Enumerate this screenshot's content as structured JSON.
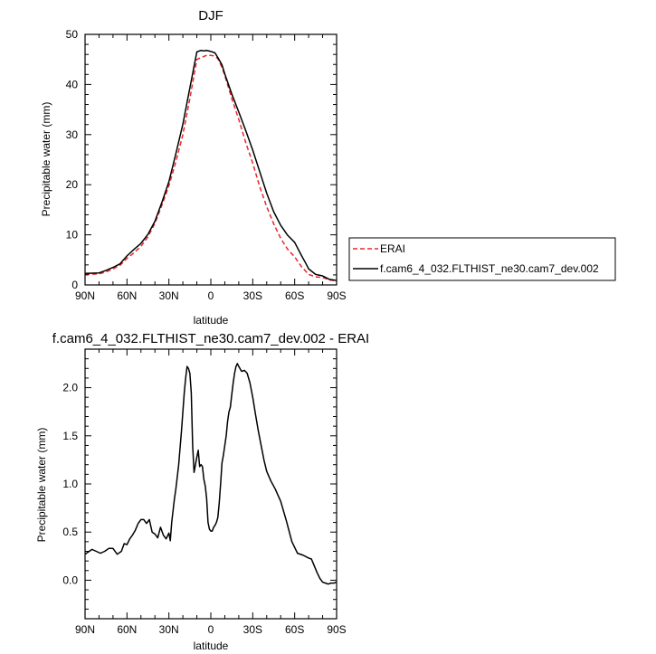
{
  "chart_data": [
    {
      "type": "line",
      "title": "DJF",
      "xlabel": "latitude",
      "ylabel": "Precipitable water (mm)",
      "xlim": [
        90,
        -90
      ],
      "ylim": [
        0,
        50
      ],
      "x_ticks": [
        90,
        60,
        30,
        0,
        -30,
        -60,
        -90
      ],
      "x_tick_labels": [
        "90N",
        "60N",
        "30N",
        "0",
        "30S",
        "60S",
        "90S"
      ],
      "y_ticks": [
        0,
        10,
        20,
        30,
        40,
        50
      ],
      "y_tick_labels": [
        "0",
        "10",
        "20",
        "30",
        "40",
        "50"
      ],
      "legend_placement": "right",
      "series": [
        {
          "name": "ERAI",
          "color": "#e8262a",
          "dash": "dashed",
          "x": [
            90,
            80,
            75,
            70,
            65,
            60,
            55,
            50,
            45,
            40,
            35,
            30,
            25,
            20,
            15,
            10,
            5,
            2,
            0,
            -2,
            -5,
            -8,
            -10,
            -15,
            -20,
            -25,
            -30,
            -35,
            -40,
            -45,
            -50,
            -55,
            -60,
            -65,
            -68,
            -70,
            -75,
            -80,
            -85,
            -90
          ],
          "y": [
            2.1,
            2.2,
            2.6,
            3.2,
            3.9,
            5.3,
            6.4,
            7.7,
            9.6,
            12.3,
            15.9,
            19.8,
            24.6,
            30.0,
            37.2,
            45.0,
            45.6,
            45.9,
            45.8,
            45.7,
            45.2,
            43.4,
            41.8,
            37.2,
            33.0,
            28.4,
            24.3,
            19.6,
            15.6,
            12.2,
            9.3,
            7.1,
            5.6,
            3.6,
            2.7,
            2.1,
            1.6,
            1.5,
            1.0,
            0.8
          ]
        },
        {
          "name": "f.cam6_4_032.FLTHIST_ne30.cam7_dev.002",
          "color": "#000000",
          "dash": "solid",
          "x": [
            90,
            80,
            75,
            70,
            65,
            60,
            55,
            50,
            45,
            40,
            35,
            30,
            25,
            20,
            15,
            10,
            7,
            5,
            3,
            0,
            -3,
            -5,
            -8,
            -10,
            -15,
            -20,
            -25,
            -30,
            -35,
            -40,
            -45,
            -50,
            -55,
            -60,
            -65,
            -68,
            -70,
            -75,
            -80,
            -85,
            -90
          ],
          "y": [
            2.3,
            2.4,
            2.9,
            3.5,
            4.2,
            5.8,
            7.1,
            8.3,
            10.1,
            12.7,
            16.5,
            20.6,
            26.2,
            32.1,
            39.3,
            46.5,
            46.8,
            46.7,
            46.8,
            46.6,
            46.3,
            45.4,
            43.9,
            42.1,
            38.1,
            34.5,
            30.8,
            26.9,
            22.6,
            18.3,
            14.6,
            11.9,
            9.9,
            8.5,
            5.8,
            4.3,
            3.2,
            2.1,
            1.8,
            1.1,
            0.9
          ]
        }
      ]
    },
    {
      "type": "line",
      "title": "f.cam6_4_032.FLTHIST_ne30.cam7_dev.002 - ERAI",
      "xlabel": "latitude",
      "ylabel": "Precipitable water (mm)",
      "xlim": [
        90,
        -90
      ],
      "ylim": [
        -0.4,
        2.4
      ],
      "x_ticks": [
        90,
        60,
        30,
        0,
        -30,
        -60,
        -90
      ],
      "x_tick_labels": [
        "90N",
        "60N",
        "30N",
        "0",
        "30S",
        "60S",
        "90S"
      ],
      "y_ticks": [
        0.0,
        0.5,
        1.0,
        1.5,
        2.0
      ],
      "y_tick_labels": [
        "0.0",
        "0.5",
        "1.0",
        "1.5",
        "2.0"
      ],
      "series": [
        {
          "name": "",
          "color": "#000000",
          "dash": "solid",
          "x": [
            90,
            87,
            85,
            82,
            79,
            76,
            73,
            70,
            67,
            64,
            62,
            60,
            58,
            56,
            54,
            52,
            50,
            48,
            46,
            44,
            42,
            40,
            38,
            36,
            34,
            32,
            30,
            29,
            28,
            26,
            25,
            23,
            21,
            19,
            18,
            17,
            16,
            15,
            14,
            13,
            12,
            11,
            10,
            9,
            8,
            7,
            6,
            5,
            4,
            3,
            2,
            1,
            0,
            -1,
            -2,
            -3,
            -4,
            -5,
            -6,
            -7,
            -8,
            -9,
            -10,
            -11,
            -12,
            -13,
            -14,
            -15,
            -16,
            -17,
            -18,
            -19,
            -20,
            -22,
            -24,
            -26,
            -28,
            -30,
            -32,
            -34,
            -36,
            -38,
            -40,
            -43,
            -46,
            -50,
            -54,
            -58,
            -62,
            -66,
            -70,
            -72,
            -74,
            -76,
            -78,
            -80,
            -82,
            -84,
            -86,
            -88,
            -90
          ],
          "y": [
            0.27,
            0.3,
            0.32,
            0.3,
            0.28,
            0.3,
            0.33,
            0.33,
            0.27,
            0.3,
            0.38,
            0.37,
            0.43,
            0.47,
            0.52,
            0.59,
            0.63,
            0.63,
            0.59,
            0.63,
            0.5,
            0.48,
            0.44,
            0.55,
            0.47,
            0.43,
            0.49,
            0.41,
            0.6,
            0.85,
            0.95,
            1.2,
            1.55,
            1.95,
            2.1,
            2.22,
            2.2,
            2.15,
            1.95,
            1.4,
            1.12,
            1.2,
            1.28,
            1.35,
            1.18,
            1.2,
            1.18,
            1.05,
            0.98,
            0.85,
            0.6,
            0.53,
            0.51,
            0.51,
            0.55,
            0.57,
            0.6,
            0.65,
            0.8,
            1.0,
            1.22,
            1.3,
            1.4,
            1.5,
            1.65,
            1.75,
            1.8,
            1.93,
            2.05,
            2.15,
            2.22,
            2.25,
            2.22,
            2.17,
            2.18,
            2.15,
            2.05,
            1.9,
            1.72,
            1.55,
            1.4,
            1.25,
            1.13,
            1.03,
            0.95,
            0.82,
            0.62,
            0.4,
            0.28,
            0.26,
            0.23,
            0.22,
            0.15,
            0.08,
            0.02,
            -0.02,
            -0.03,
            -0.04,
            -0.03,
            -0.03,
            -0.02
          ]
        }
      ]
    }
  ]
}
